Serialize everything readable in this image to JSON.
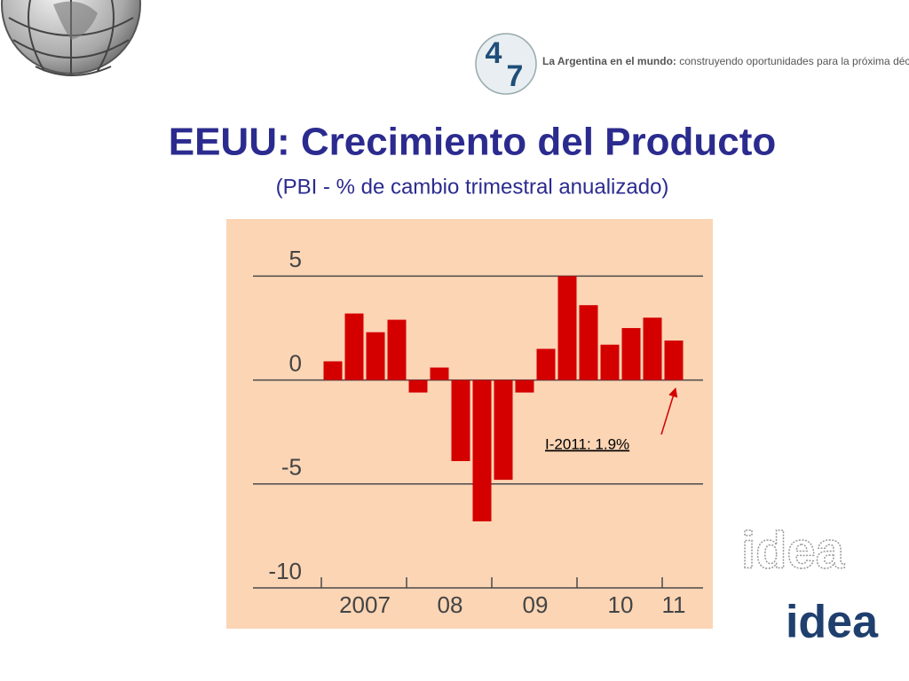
{
  "header": {
    "tagline_bold": "La Argentina en el mundo:",
    "tagline": "construyendo oportunidades para la próxima década",
    "badge": [
      "4",
      "7"
    ],
    "logos": [
      "idea",
      "idea"
    ]
  },
  "chart_data": {
    "type": "bar",
    "title": "EEUU: Crecimiento del Producto",
    "subtitle": "(PBI - % de cambio trimestral anualizado)",
    "categories": [
      "2007",
      null,
      null,
      null,
      "08",
      null,
      null,
      null,
      "09",
      null,
      null,
      null,
      "10",
      null,
      null,
      null,
      "11"
    ],
    "series": [
      {
        "color": "#d40000",
        "values": [
          0.9,
          3.2,
          2.3,
          2.9,
          -0.6,
          0.6,
          -3.9,
          -6.8,
          -4.8,
          -0.6,
          1.5,
          5.0,
          3.6,
          1.7,
          2.5,
          3.0,
          1.9
        ]
      }
    ],
    "ylim": [
      -10,
      7.5
    ],
    "yticks": [
      5,
      0,
      -5,
      -10
    ],
    "grid": true,
    "annotation": "I-2011: 1.9%"
  }
}
